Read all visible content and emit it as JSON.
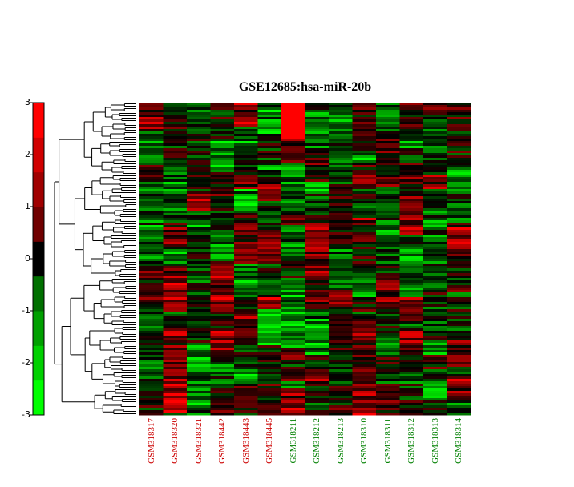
{
  "chart_data": {
    "type": "heatmap",
    "title": "GSE12685:hsa-miR-20b",
    "colorbar": {
      "range": [
        -3,
        3
      ],
      "ticks": [
        "3",
        "2",
        "1",
        "0",
        "-1",
        "-2",
        "-3"
      ],
      "colors": [
        "#00ff00",
        "#00d000",
        "#00a000",
        "#007000",
        "#000000",
        "#700000",
        "#a00000",
        "#d00000",
        "#ff0000"
      ],
      "position": "left"
    },
    "columns": [
      {
        "label": "GSM318317",
        "group_color": "#cc0000"
      },
      {
        "label": "GSM318320",
        "group_color": "#cc0000"
      },
      {
        "label": "GSM318321",
        "group_color": "#cc0000"
      },
      {
        "label": "GSM318442",
        "group_color": "#cc0000"
      },
      {
        "label": "GSM318443",
        "group_color": "#cc0000"
      },
      {
        "label": "GSM318445",
        "group_color": "#cc0000"
      },
      {
        "label": "GSM318211",
        "group_color": "#008000"
      },
      {
        "label": "GSM318212",
        "group_color": "#008000"
      },
      {
        "label": "GSM318213",
        "group_color": "#008000"
      },
      {
        "label": "GSM318310",
        "group_color": "#008000"
      },
      {
        "label": "GSM318311",
        "group_color": "#008000"
      },
      {
        "label": "GSM318312",
        "group_color": "#008000"
      },
      {
        "label": "GSM318313",
        "group_color": "#008000"
      },
      {
        "label": "GSM318314",
        "group_color": "#008000"
      }
    ],
    "row_count": 130,
    "row_dendrogram": true,
    "grid": false
  }
}
